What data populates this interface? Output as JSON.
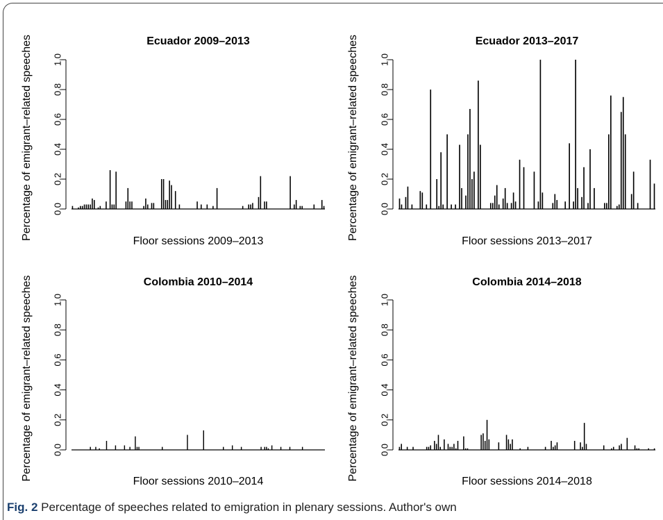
{
  "caption": {
    "label": "Fig. 2",
    "text": " Percentage of speeches related to emigration in plenary sessions. Author's own"
  },
  "chart_data": [
    {
      "type": "bar",
      "title": "Ecuador 2009–2013",
      "xlabel": "Floor sessions 2009–2013",
      "ylabel": "Percentage of emigrant–related speeches",
      "ylim": [
        0,
        1
      ],
      "yticks": [
        "0.0",
        "0.2",
        "0.4",
        "0.6",
        "0.8",
        "1.0"
      ],
      "grid": false,
      "values": [
        0.02,
        0,
        0,
        0.01,
        0.02,
        0.02,
        0.03,
        0.03,
        0.03,
        0.03,
        0.07,
        0.06,
        0,
        0.01,
        0.02,
        0,
        0,
        0.05,
        0,
        0.26,
        0.03,
        0.03,
        0.25,
        0,
        0,
        0,
        0,
        0.05,
        0.14,
        0.05,
        0.05,
        0,
        0,
        0,
        0,
        0,
        0.02,
        0.07,
        0.03,
        0,
        0.04,
        0.04,
        0,
        0,
        0,
        0.2,
        0.2,
        0.06,
        0.06,
        0.19,
        0.16,
        0,
        0.12,
        0,
        0.03,
        0,
        0,
        0,
        0,
        0,
        0,
        0,
        0,
        0.05,
        0,
        0.03,
        0,
        0,
        0.03,
        0,
        0,
        0.02,
        0,
        0.14,
        0,
        0,
        0,
        0,
        0,
        0,
        0,
        0,
        0,
        0,
        0,
        0,
        0.02,
        0,
        0,
        0.03,
        0.03,
        0.04,
        0,
        0,
        0.08,
        0.22,
        0,
        0.05,
        0.05,
        0,
        0,
        0,
        0,
        0,
        0,
        0,
        0,
        0,
        0,
        0,
        0.22,
        0,
        0.03,
        0.06,
        0,
        0.02,
        0.02,
        0,
        0,
        0,
        0,
        0,
        0.03,
        0,
        0,
        0,
        0.06,
        0.02
      ]
    },
    {
      "type": "bar",
      "title": "Ecuador 2013–2017",
      "xlabel": "Floor sessions 2013–2017",
      "ylabel": "Percentage of emigrant–related speeches",
      "ylim": [
        0,
        1
      ],
      "yticks": [
        "0.0",
        "0.2",
        "0.4",
        "0.6",
        "0.8",
        "1.0"
      ],
      "grid": false,
      "values": [
        0.07,
        0.03,
        0,
        0.08,
        0.15,
        0,
        0.03,
        0,
        0,
        0,
        0.12,
        0.11,
        0,
        0.03,
        0,
        0.8,
        0,
        0,
        0.2,
        0.02,
        0.38,
        0.03,
        0,
        0.5,
        0,
        0.03,
        0,
        0.03,
        0,
        0.43,
        0.14,
        0,
        0.09,
        0.5,
        0.67,
        0.2,
        0.25,
        0,
        0.86,
        0.43,
        0,
        0,
        0,
        0,
        0.04,
        0.04,
        0.09,
        0.16,
        0.03,
        0,
        0.07,
        0.14,
        0.04,
        0,
        0.04,
        0.11,
        0.05,
        0,
        0.33,
        0,
        0.28,
        0,
        0,
        0,
        0,
        0.25,
        0,
        0.05,
        1,
        0.11,
        0,
        0,
        0,
        0,
        0.04,
        0.1,
        0.06,
        0,
        0,
        0,
        0.05,
        0,
        0.44,
        0,
        0.05,
        1,
        0.14,
        0,
        0.08,
        0.28,
        0,
        0.04,
        0.4,
        0,
        0.14,
        0,
        0,
        0,
        0,
        0.04,
        0.04,
        0.5,
        0.76,
        0,
        0,
        0.02,
        0.03,
        0.65,
        0.75,
        0.5,
        0,
        0,
        0.1,
        0.25,
        0,
        0.04,
        0,
        0,
        0,
        0,
        0,
        0.33,
        0,
        0.17
      ]
    },
    {
      "type": "bar",
      "title": "Colombia 2010–2014",
      "xlabel": "Floor sessions 2010–2014",
      "ylabel": "Percentage of emigrant–related speeches",
      "ylim": [
        0,
        1
      ],
      "yticks": [
        "0.0",
        "0.2",
        "0.4",
        "0.6",
        "0.8",
        "1.0"
      ],
      "grid": false,
      "values": [
        0,
        0,
        0,
        0,
        0,
        0,
        0,
        0,
        0,
        0,
        0.02,
        0,
        0,
        0.02,
        0,
        0.01,
        0,
        0,
        0,
        0.06,
        0,
        0,
        0,
        0,
        0.03,
        0,
        0,
        0,
        0,
        0.03,
        0,
        0,
        0.02,
        0,
        0,
        0.09,
        0.02,
        0.02,
        0,
        0,
        0,
        0,
        0,
        0,
        0,
        0,
        0,
        0,
        0,
        0,
        0.02,
        0,
        0,
        0,
        0,
        0,
        0,
        0,
        0,
        0,
        0,
        0,
        0,
        0,
        0.1,
        0,
        0,
        0,
        0,
        0,
        0,
        0,
        0,
        0.13,
        0,
        0,
        0,
        0,
        0,
        0,
        0,
        0,
        0,
        0,
        0.02,
        0,
        0,
        0,
        0,
        0.03,
        0,
        0,
        0,
        0,
        0.02,
        0,
        0,
        0,
        0,
        0,
        0,
        0,
        0,
        0,
        0,
        0.02,
        0,
        0.02,
        0.02,
        0.01,
        0,
        0.03,
        0,
        0,
        0,
        0,
        0.02,
        0,
        0,
        0,
        0,
        0.02,
        0,
        0,
        0,
        0,
        0,
        0,
        0.02,
        0,
        0,
        0,
        0,
        0,
        0,
        0,
        0,
        0,
        0,
        0,
        0
      ]
    },
    {
      "type": "bar",
      "title": "Colombia 2014–2018",
      "xlabel": "Floor sessions 2014–2018",
      "ylabel": "Percentage of emigrant–related speeches",
      "ylim": [
        0,
        1
      ],
      "yticks": [
        "0.0",
        "0.2",
        "0.4",
        "0.6",
        "0.8",
        "1.0"
      ],
      "grid": false,
      "values": [
        0.02,
        0.04,
        0,
        0,
        0.02,
        0,
        0,
        0.02,
        0,
        0,
        0,
        0,
        0,
        0,
        0.02,
        0.02,
        0.03,
        0,
        0.06,
        0.04,
        0.1,
        0.02,
        0,
        0.07,
        0,
        0.04,
        0.02,
        0.02,
        0.04,
        0.01,
        0.06,
        0,
        0,
        0.09,
        0.01,
        0.01,
        0,
        0,
        0,
        0,
        0,
        0,
        0.1,
        0.11,
        0.06,
        0.2,
        0.07,
        0,
        0,
        0,
        0,
        0.05,
        0,
        0,
        0,
        0.1,
        0.07,
        0.04,
        0.07,
        0,
        0,
        0,
        0.01,
        0,
        0,
        0,
        0.02,
        0,
        0,
        0,
        0,
        0,
        0,
        0,
        0,
        0.02,
        0,
        0,
        0.06,
        0.02,
        0.03,
        0.05,
        0,
        0,
        0,
        0,
        0,
        0,
        0,
        0,
        0.06,
        0,
        0,
        0.05,
        0.02,
        0.18,
        0.04,
        0,
        0,
        0,
        0,
        0,
        0,
        0,
        0,
        0.03,
        0,
        0,
        0,
        0.01,
        0.02,
        0,
        0,
        0.03,
        0.04,
        0,
        0,
        0.08,
        0,
        0,
        0,
        0.03,
        0.01,
        0.01,
        0,
        0,
        0,
        0,
        0.01,
        0,
        0,
        0.01
      ]
    }
  ]
}
